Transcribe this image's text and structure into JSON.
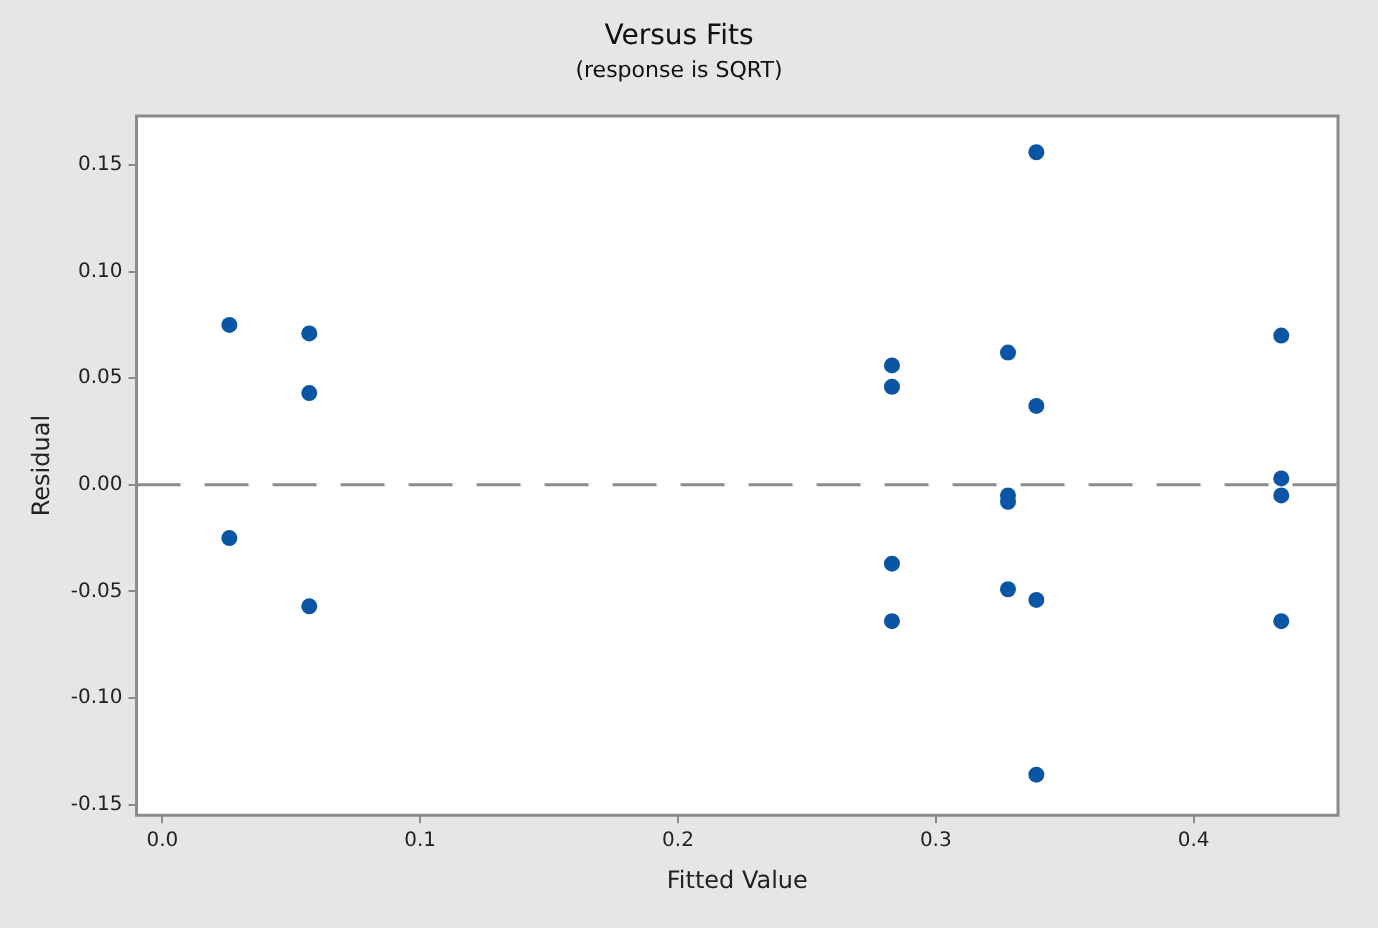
{
  "chart_data": {
    "type": "scatter",
    "title": "Versus Fits",
    "subtitle": "(response is SQRT)",
    "xlabel": "Fitted Value",
    "ylabel": "Residual",
    "marker": "circle",
    "grid": false,
    "legend": false,
    "series": [
      {
        "color": "#0a56a5",
        "x": [
          0.026,
          0.026,
          0.057,
          0.057,
          0.057,
          0.283,
          0.283,
          0.283,
          0.283,
          0.328,
          0.328,
          0.328,
          0.328,
          0.339,
          0.339,
          0.339,
          0.339,
          0.434,
          0.434,
          0.434,
          0.434
        ],
        "values": [
          0.075,
          -0.025,
          0.071,
          0.043,
          -0.057,
          0.056,
          0.046,
          -0.037,
          -0.064,
          0.062,
          -0.005,
          -0.008,
          -0.049,
          0.156,
          0.037,
          -0.054,
          -0.136,
          0.07,
          0.003,
          -0.005,
          -0.064
        ]
      }
    ],
    "xlim": [
      -0.01,
      0.456
    ],
    "ylim": [
      -0.155,
      0.173
    ],
    "xticks": [
      {
        "value": 0,
        "label": "0.0"
      },
      {
        "value": 0.1,
        "label": "0.1"
      },
      {
        "value": 0.2,
        "label": "0.2"
      },
      {
        "value": 0.3,
        "label": "0.3"
      },
      {
        "value": 0.4,
        "label": "0.4"
      }
    ],
    "yticks": [
      {
        "value": -0.15,
        "label": "-0.15"
      },
      {
        "value": -0.1,
        "label": "-0.10"
      },
      {
        "value": -0.05,
        "label": "-0.05"
      },
      {
        "value": 0,
        "label": "0.00"
      },
      {
        "value": 0.05,
        "label": "0.05"
      },
      {
        "value": 0.1,
        "label": "0.10"
      },
      {
        "value": 0.15,
        "label": "0.15"
      }
    ],
    "ref_lines": [
      {
        "axis": "y",
        "value": 0,
        "color": "#8c8c8c",
        "line_style": "dashed"
      }
    ]
  }
}
